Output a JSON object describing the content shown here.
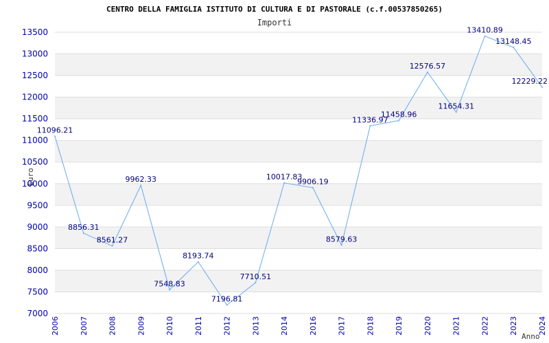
{
  "chart_data": {
    "type": "line",
    "title": "CENTRO DELLA FAMIGLIA ISTITUTO DI CULTURA E DI PASTORALE (c.f.00537850265)",
    "subtitle": "Importi",
    "ylabel": "Euro",
    "xlabel": "Anno",
    "ylim": [
      7000,
      13500
    ],
    "yticks": [
      7000,
      7500,
      8000,
      8500,
      9000,
      9500,
      10000,
      10500,
      11000,
      11500,
      12000,
      12500,
      13000,
      13500
    ],
    "categories": [
      "2006",
      "2007",
      "2008",
      "2009",
      "2010",
      "2011",
      "2012",
      "2013",
      "2014",
      "2016",
      "2017",
      "2018",
      "2019",
      "2020",
      "2021",
      "2022",
      "2023",
      "2024"
    ],
    "values": [
      11096.21,
      8856.31,
      8561.27,
      9962.33,
      7548.83,
      8193.74,
      7196.81,
      7710.51,
      10017.83,
      9906.19,
      8579.63,
      11336.97,
      11458.96,
      12576.57,
      11654.31,
      13410.89,
      13148.45,
      12229.22
    ],
    "data_labels": [
      "11096.21",
      "8856.31",
      "8561.27",
      "9962.33",
      "7548.83",
      "8193.74",
      "7196.81",
      "7710.51",
      "10017.83",
      "9906.19",
      "8579.63",
      "11336.97",
      "11458.96",
      "12576.57",
      "11654.31",
      "13410.89",
      "13148.45",
      "12229.22"
    ],
    "grid": true,
    "colors": {
      "line": "#66aaee",
      "band": "#f2f2f2",
      "grid": "#dddddd",
      "tick_text": "#0000aa",
      "label_text": "#000080"
    }
  }
}
